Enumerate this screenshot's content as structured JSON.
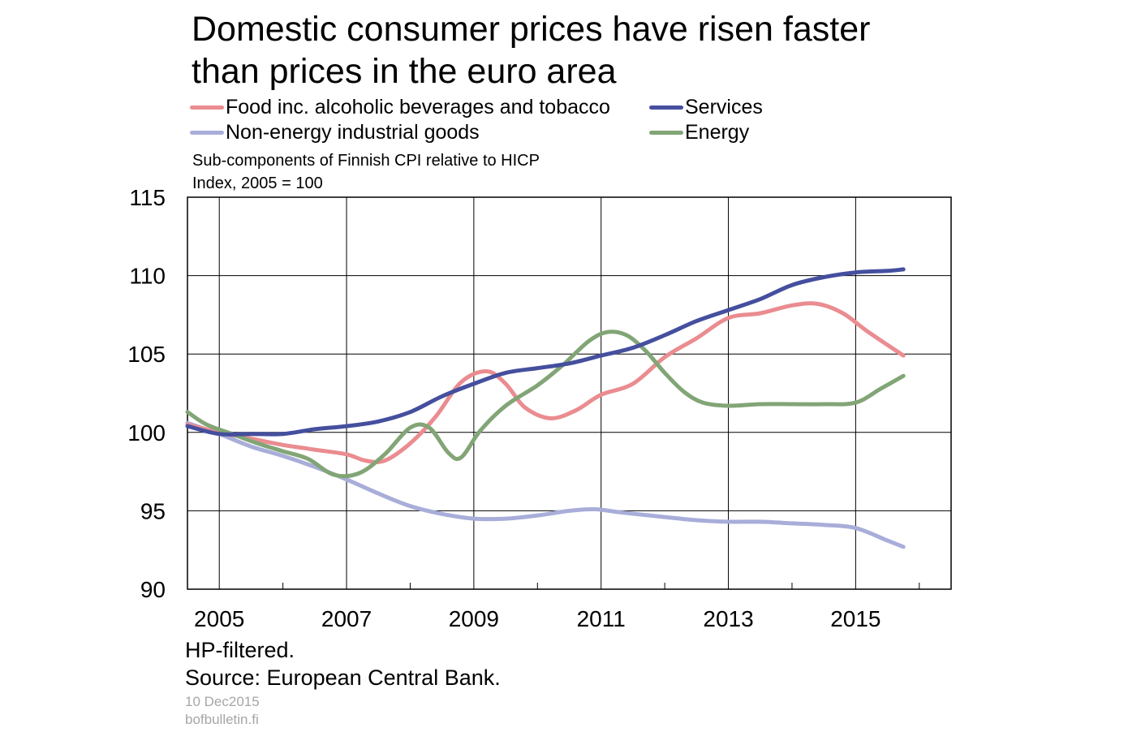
{
  "title_line1": "Domestic consumer prices have risen faster",
  "title_line2": "than prices in the euro area",
  "subtitle_line1": "Sub-components  of Finnish  CPI relative to HICP",
  "subtitle_line2": "Index,  2005 = 100",
  "footnote_line1": "HP-filtered.",
  "footnote_line2": "Source: European  Central Bank.",
  "date": "10 Dec2015",
  "site": "bofbulletin.fi",
  "colors": {
    "food": "#ea8c90",
    "services": "#454f9e",
    "non_energy": "#a8add9",
    "energy": "#82a576"
  },
  "chart_data": {
    "type": "line",
    "ylim": [
      90,
      115
    ],
    "yticks": [
      "90",
      "95",
      "100",
      "105",
      "110",
      "115"
    ],
    "xlim": [
      2004.5,
      2016.5
    ],
    "xticks": [
      "2005",
      "2007",
      "2009",
      "2011",
      "2013",
      "2015"
    ],
    "grid": true,
    "legend_position": "top",
    "series": [
      {
        "name": "Food inc. alcoholic beverages and tobacco",
        "color_key": "food",
        "x": [
          2004.5,
          2005.0,
          2005.5,
          2006.0,
          2006.5,
          2007.0,
          2007.3,
          2007.6,
          2008.0,
          2008.4,
          2008.8,
          2009.2,
          2009.5,
          2009.8,
          2010.2,
          2010.6,
          2011.0,
          2011.5,
          2012.0,
          2012.5,
          2013.0,
          2013.5,
          2014.0,
          2014.4,
          2014.8,
          2015.2,
          2015.75
        ],
        "values": [
          100.5,
          100.0,
          99.6,
          99.2,
          98.9,
          98.6,
          98.2,
          98.2,
          99.3,
          101.0,
          103.2,
          103.9,
          103.1,
          101.6,
          100.9,
          101.4,
          102.4,
          103.1,
          104.8,
          106.0,
          107.3,
          107.6,
          108.1,
          108.2,
          107.6,
          106.4,
          104.9
        ]
      },
      {
        "name": "Services",
        "color_key": "services",
        "x": [
          2004.5,
          2005.0,
          2005.5,
          2006.0,
          2006.5,
          2007.0,
          2007.5,
          2008.0,
          2008.5,
          2009.0,
          2009.5,
          2010.0,
          2010.5,
          2011.0,
          2011.5,
          2012.0,
          2012.5,
          2013.0,
          2013.5,
          2014.0,
          2014.5,
          2015.0,
          2015.5,
          2015.75
        ],
        "values": [
          100.4,
          99.9,
          99.9,
          99.9,
          100.2,
          100.4,
          100.7,
          101.3,
          102.3,
          103.1,
          103.8,
          104.1,
          104.4,
          104.9,
          105.4,
          106.2,
          107.1,
          107.8,
          108.5,
          109.4,
          109.9,
          110.2,
          110.3,
          110.4
        ]
      },
      {
        "name": "Non-energy industrial goods",
        "color_key": "non_energy",
        "x": [
          2004.5,
          2005.0,
          2005.5,
          2006.0,
          2006.5,
          2007.0,
          2007.5,
          2008.0,
          2008.5,
          2009.0,
          2009.5,
          2010.0,
          2010.5,
          2010.9,
          2011.3,
          2012.0,
          2012.5,
          2013.0,
          2013.5,
          2014.0,
          2014.5,
          2015.0,
          2015.5,
          2015.75
        ],
        "values": [
          100.6,
          99.9,
          99.1,
          98.5,
          97.8,
          97.0,
          96.1,
          95.3,
          94.8,
          94.5,
          94.5,
          94.7,
          95.0,
          95.1,
          94.9,
          94.6,
          94.4,
          94.3,
          94.3,
          94.2,
          94.1,
          93.9,
          93.1,
          92.7
        ]
      },
      {
        "name": "Energy",
        "color_key": "energy",
        "x": [
          2004.5,
          2004.8,
          2005.2,
          2005.6,
          2006.0,
          2006.4,
          2006.8,
          2007.2,
          2007.6,
          2008.0,
          2008.3,
          2008.6,
          2008.8,
          2009.1,
          2009.5,
          2010.0,
          2010.4,
          2010.8,
          2011.1,
          2011.4,
          2011.7,
          2012.0,
          2012.3,
          2012.6,
          2013.0,
          2013.5,
          2014.0,
          2014.5,
          2015.0,
          2015.4,
          2015.75
        ],
        "values": [
          101.3,
          100.5,
          99.9,
          99.3,
          98.8,
          98.3,
          97.3,
          97.4,
          98.6,
          100.3,
          100.3,
          98.7,
          98.4,
          100.1,
          101.7,
          103.0,
          104.3,
          105.8,
          106.4,
          106.2,
          105.2,
          103.8,
          102.6,
          101.9,
          101.7,
          101.8,
          101.8,
          101.8,
          101.9,
          102.8,
          103.6
        ]
      }
    ]
  }
}
